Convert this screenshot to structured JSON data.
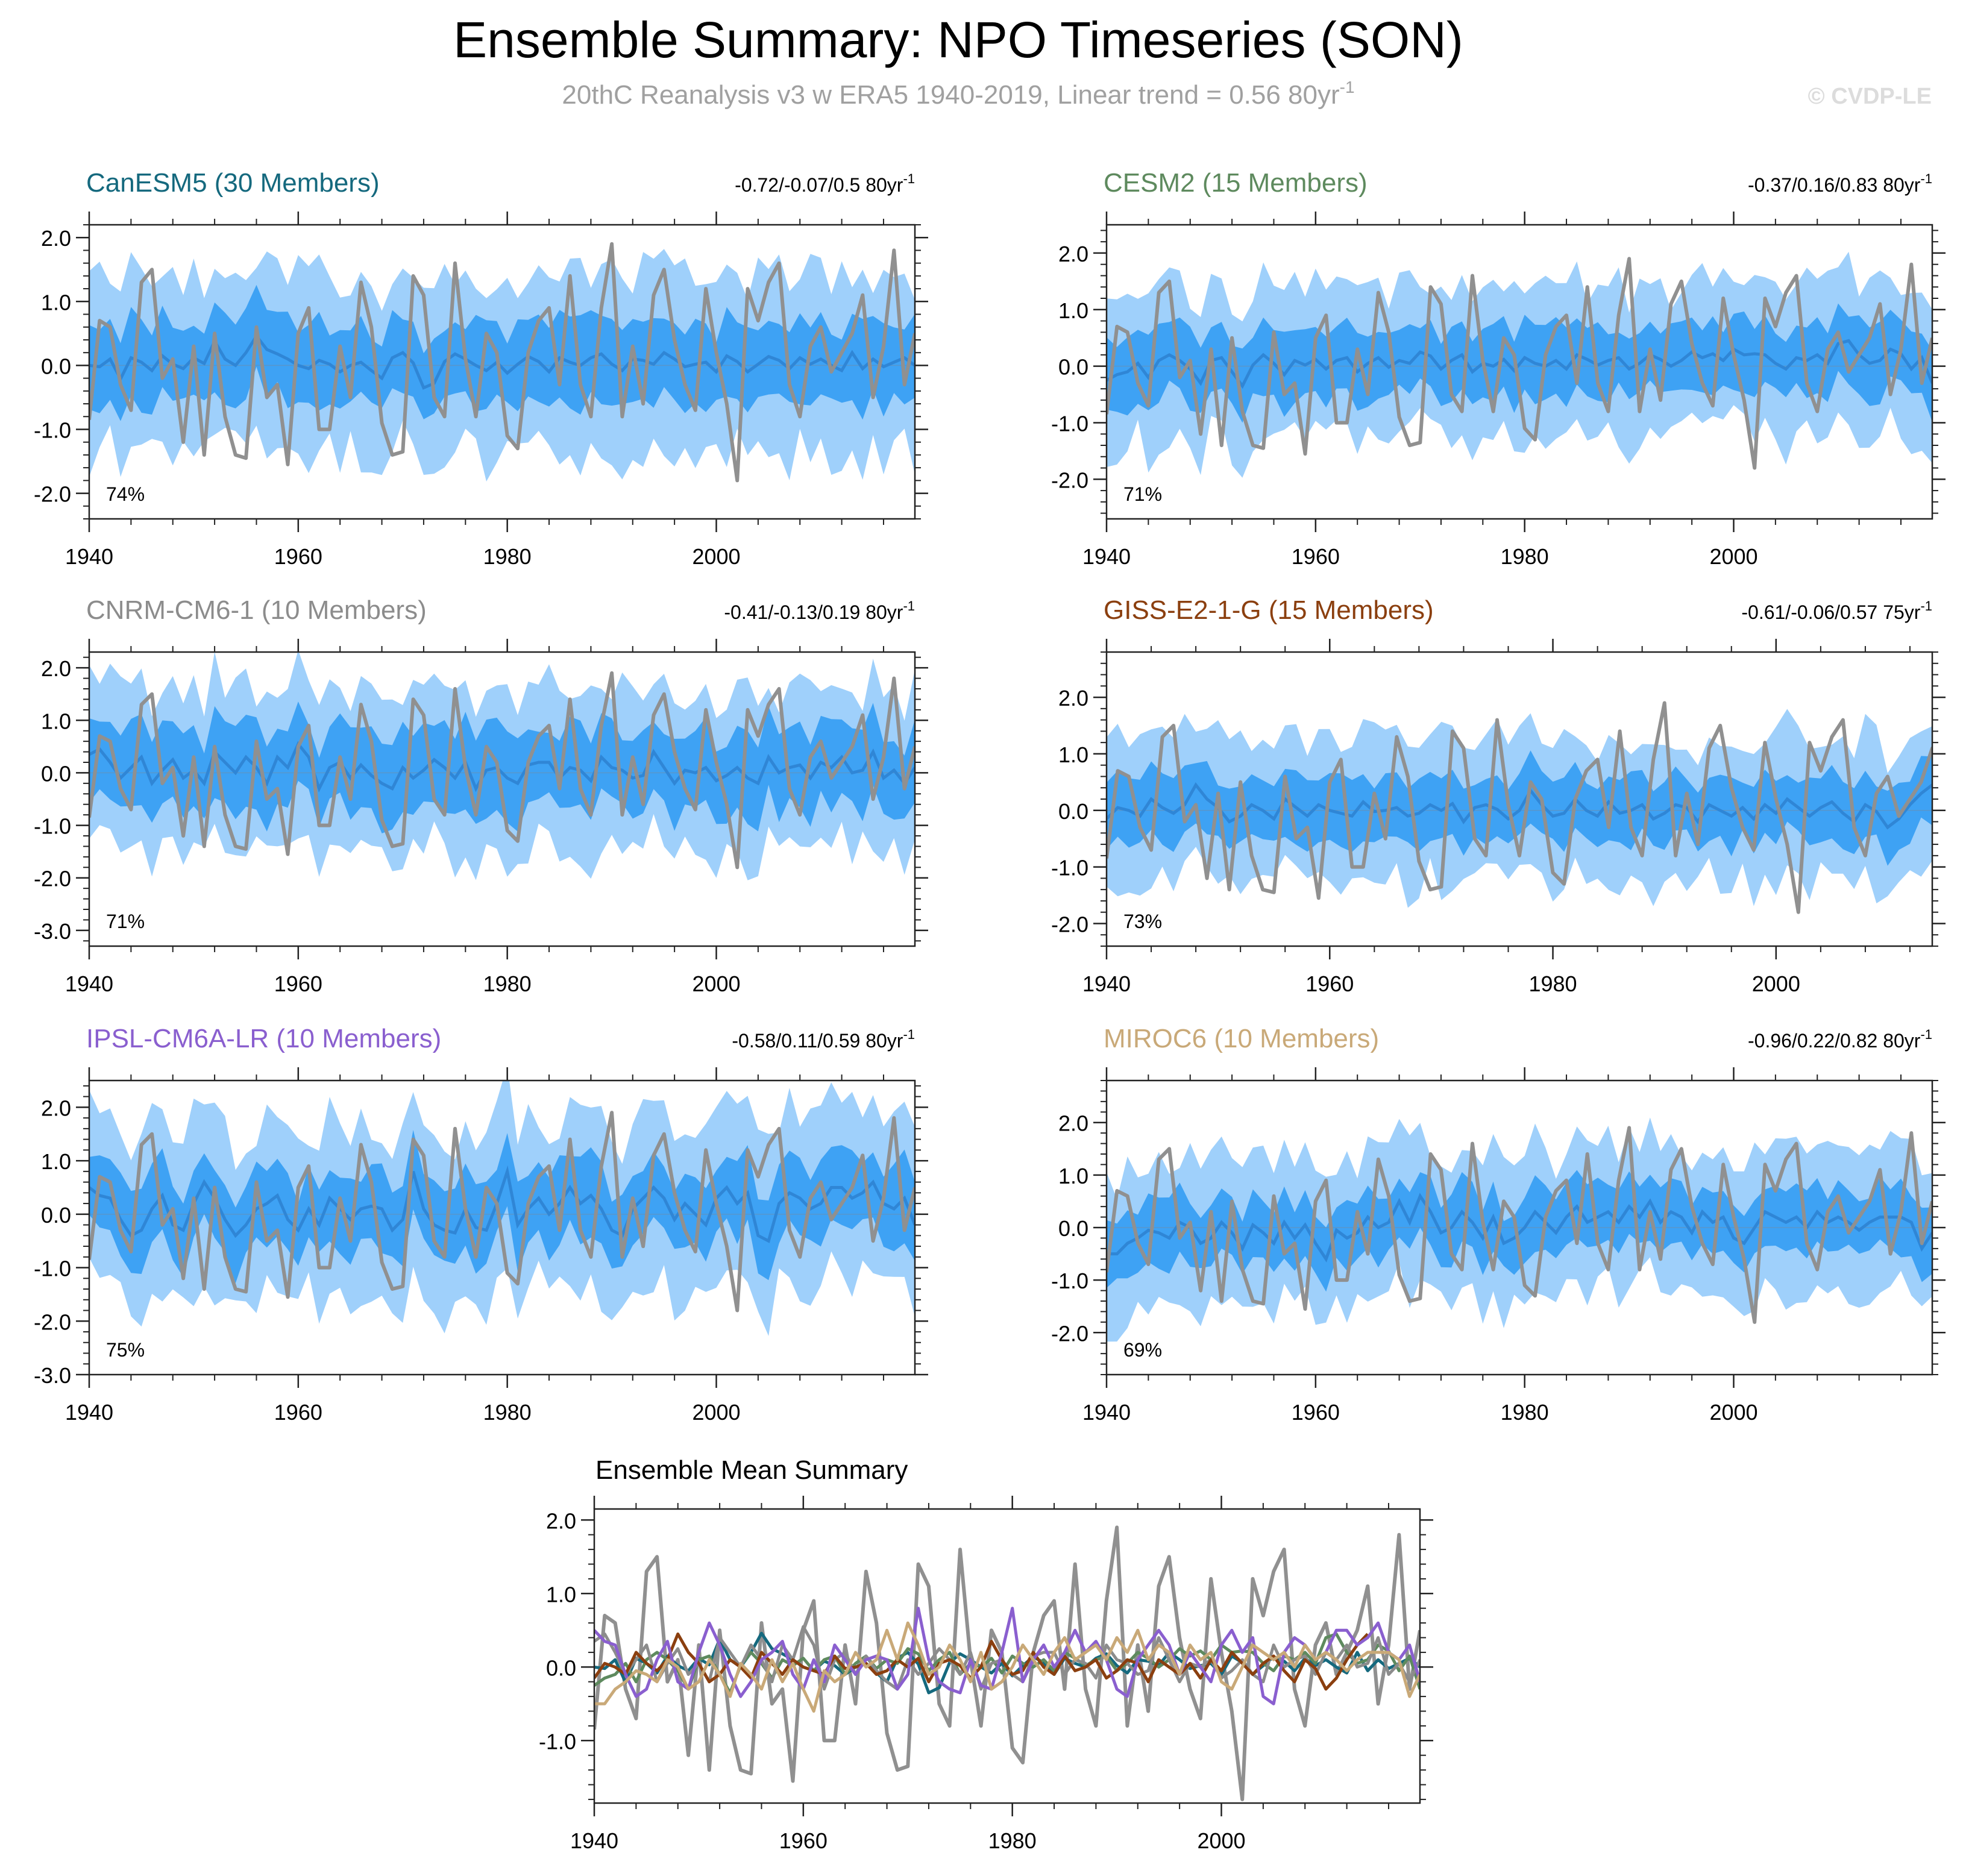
{
  "title": "Ensemble Summary: NPO Timeseries (SON)",
  "subtitle_main": "20thC Reanalysis v3 w ERA5 1940-2019, Linear trend = 0.56 80yr",
  "subtitle_sup": "-1",
  "watermark": "© CVDP-LE",
  "colors": {
    "band_outer": "#9fd0fb",
    "band_inner": "#3ea2f4",
    "ens_mean": "#2f86d6",
    "obs": "#909090",
    "axis": "#000000",
    "subtitle": "#a0a0a0",
    "watermark": "#dcdcdc",
    "CanESM5": "#15697e",
    "CESM2": "#5e8a5e",
    "CNRM-CM6-1": "#8c8c8c",
    "GISS-E2-1-G": "#8b3f0f",
    "IPSL-CM6A-LR": "#8a5fcf",
    "MIROC6": "#c9a978"
  },
  "chart_data": [
    {
      "type": "line",
      "name": "CanESM5",
      "title": "CanESM5 (30 Members)",
      "trend_label": "-0.72/-0.07/0.5 80yr",
      "trend_sup": "-1",
      "pct_label": "74%",
      "xlim": [
        1940,
        2019
      ],
      "ylim": [
        -2.4,
        2.2
      ],
      "yticks": [
        2.0,
        1.0,
        0.0,
        -1.0,
        -2.0
      ],
      "ytick_labels": [
        "2.0",
        "1.0",
        "0.0",
        "-1.0",
        "-2.0"
      ],
      "xticks": [
        1940,
        1960,
        1980,
        2000
      ],
      "xtick_labels": [
        "1940",
        "1960",
        "1980",
        "2000"
      ],
      "outer_amp": 1.35,
      "inner_amp": 0.62,
      "mean_series": [
        0.0,
        -0.02,
        0.1,
        -0.21,
        0.12,
        0.05,
        -0.08,
        0.15,
        0.02,
        -0.05,
        0.12,
        0.03,
        0.38,
        0.1,
        0.0,
        0.2,
        0.46,
        0.25,
        0.18,
        0.1,
        0.0,
        -0.05,
        0.08,
        0.02,
        -0.1,
        0.0,
        0.05,
        -0.08,
        -0.2,
        0.12,
        0.2,
        0.04,
        -0.35,
        -0.28,
        0.06,
        0.18,
        0.1,
        0.0,
        -0.08,
        0.05,
        -0.12,
        0.02,
        0.14,
        0.06,
        -0.1,
        0.12,
        0.05,
        0.0,
        0.12,
        0.18,
        0.02,
        -0.08,
        0.1,
        0.08,
        0.02,
        0.2,
        0.1,
        -0.02,
        0.02,
        0.05,
        -0.1,
        0.15,
        0.06,
        -0.1,
        0.02,
        0.14,
        0.08,
        -0.05,
        0.12,
        0.02,
        0.1,
        0.0,
        -0.08,
        0.2,
        -0.05,
        0.1,
        -0.02,
        0.05,
        0.12,
        0.0
      ]
    },
    {
      "type": "line",
      "name": "CESM2",
      "title": "CESM2 (15 Members)",
      "trend_label": "-0.37/0.16/0.83 80yr",
      "trend_sup": "-1",
      "pct_label": "71%",
      "xlim": [
        1940,
        2019
      ],
      "ylim": [
        -2.7,
        2.5
      ],
      "yticks": [
        2.0,
        1.0,
        0.0,
        -1.0,
        -2.0
      ],
      "ytick_labels": [
        "2.0",
        "1.0",
        "0.0",
        "-1.0",
        "-2.0"
      ],
      "xticks": [
        1940,
        1960,
        1980,
        2000
      ],
      "xtick_labels": [
        "1940",
        "1960",
        "1980",
        "2000"
      ],
      "outer_amp": 1.3,
      "inner_amp": 0.6,
      "mean_series": [
        -0.25,
        -0.15,
        -0.1,
        0.05,
        -0.2,
        0.1,
        0.2,
        0.1,
        -0.05,
        -0.3,
        0.1,
        0.15,
        -0.1,
        -0.35,
        0.02,
        0.2,
        0.05,
        -0.15,
        0.1,
        0.02,
        0.12,
        -0.05,
        0.1,
        0.15,
        -0.1,
        0.05,
        0.15,
        -0.02,
        0.1,
        0.05,
        0.25,
        0.18,
        -0.05,
        0.1,
        0.2,
        -0.1,
        0.05,
        0.0,
        0.12,
        -0.08,
        0.15,
        0.05,
        0.0,
        0.1,
        -0.05,
        0.2,
        0.12,
        0.02,
        0.1,
        0.15,
        -0.05,
        0.05,
        0.2,
        0.12,
        0.0,
        0.1,
        0.25,
        0.15,
        0.22,
        0.1,
        0.3,
        0.2,
        0.22,
        0.2,
        0.05,
        -0.05,
        0.15,
        0.1,
        0.2,
        0.05,
        0.4,
        0.45,
        0.2,
        0.05,
        0.1,
        0.3,
        0.22,
        -0.05,
        0.15,
        -0.3
      ]
    },
    {
      "type": "line",
      "name": "CNRM-CM6-1",
      "title": "CNRM-CM6-1 (10 Members)",
      "trend_label": "-0.41/-0.13/0.19 80yr",
      "trend_sup": "-1",
      "pct_label": "71%",
      "xlim": [
        1940,
        2019
      ],
      "ylim": [
        -3.3,
        2.3
      ],
      "yticks": [
        2.0,
        1.0,
        0.0,
        -1.0,
        -2.0,
        -3.0
      ],
      "ytick_labels": [
        "2.0",
        "1.0",
        "0.0",
        "-1.0",
        "-2.0",
        "-3.0"
      ],
      "xticks": [
        1940,
        1960,
        1980,
        2000
      ],
      "xtick_labels": [
        "1940",
        "1960",
        "1980",
        "2000"
      ],
      "outer_amp": 1.5,
      "inner_amp": 0.75,
      "mean_series": [
        0.35,
        0.45,
        0.2,
        -0.1,
        0.1,
        0.3,
        -0.2,
        0.05,
        0.25,
        -0.1,
        0.05,
        -0.2,
        0.4,
        0.2,
        0.0,
        0.3,
        0.1,
        -0.2,
        0.3,
        0.1,
        0.55,
        0.3,
        -0.3,
        0.1,
        0.2,
        -0.1,
        0.15,
        -0.05,
        -0.2,
        -0.3,
        0.1,
        -0.1,
        0.05,
        0.25,
        0.1,
        -0.1,
        0.2,
        -0.3,
        0.05,
        0.1,
        -0.1,
        -0.2,
        0.15,
        0.2,
        0.2,
        -0.1,
        0.1,
        0.05,
        -0.15,
        0.3,
        0.1,
        0.05,
        -0.1,
        -0.05,
        0.4,
        0.1,
        -0.2,
        0.05,
        0.0,
        0.1,
        -0.15,
        -0.05,
        0.1,
        -0.1,
        -0.2,
        0.3,
        0.0,
        0.1,
        0.15,
        -0.1,
        0.2,
        0.1,
        0.3,
        0.0,
        0.05,
        0.4,
        -0.1,
        0.05,
        -0.2,
        0.1
      ]
    },
    {
      "type": "line",
      "name": "GISS-E2-1-G",
      "title": "GISS-E2-1-G (15 Members)",
      "trend_label": "-0.61/-0.06/0.57 75yr",
      "trend_sup": "-1",
      "pct_label": "73%",
      "xlim": [
        1940,
        2014
      ],
      "ylim": [
        -2.4,
        2.8
      ],
      "yticks": [
        2.0,
        1.0,
        0.0,
        -1.0,
        -2.0
      ],
      "ytick_labels": [
        "2.0",
        "1.0",
        "0.0",
        "-1.0",
        "-2.0"
      ],
      "xticks": [
        1940,
        1960,
        1980,
        2000
      ],
      "xtick_labels": [
        "1940",
        "1960",
        "1980",
        "2000"
      ],
      "outer_amp": 1.25,
      "inner_amp": 0.55,
      "mean_series": [
        -0.15,
        0.05,
        0.0,
        -0.1,
        0.2,
        0.05,
        -0.05,
        0.1,
        0.45,
        0.2,
        0.05,
        -0.2,
        -0.1,
        0.1,
        0.0,
        -0.15,
        0.2,
        0.05,
        -0.1,
        0.1,
        0.0,
        -0.05,
        -0.1,
        0.15,
        -0.02,
        0.0,
        0.05,
        -0.1,
        -0.05,
        0.1,
        0.0,
        0.12,
        -0.2,
        0.05,
        0.1,
        0.02,
        -0.15,
        0.0,
        0.35,
        0.1,
        -0.1,
        -0.05,
        0.2,
        0.0,
        -0.1,
        0.15,
        -0.05,
        0.0,
        0.1,
        -0.15,
        -0.05,
        0.1,
        0.05,
        -0.2,
        0.1,
        0.0,
        -0.1,
        0.05,
        -0.15,
        0.1,
        -0.05,
        0.2,
        0.05,
        -0.1,
        0.05,
        0.15,
        -0.05,
        -0.2,
        0.1,
        -0.02,
        -0.3,
        -0.15,
        0.1,
        0.3,
        0.45
      ]
    },
    {
      "type": "line",
      "name": "IPSL-CM6A-LR",
      "title": "IPSL-CM6A-LR (10 Members)",
      "trend_label": "-0.58/0.11/0.59 80yr",
      "trend_sup": "-1",
      "pct_label": "75%",
      "xlim": [
        1940,
        2019
      ],
      "ylim": [
        -3.0,
        2.5
      ],
      "yticks": [
        2.0,
        1.0,
        0.0,
        -1.0,
        -2.0,
        -3.0
      ],
      "ytick_labels": [
        "2.0",
        "1.0",
        "0.0",
        "-1.0",
        "-2.0",
        "-3.0"
      ],
      "xticks": [
        1940,
        1960,
        1980,
        2000
      ],
      "xtick_labels": [
        "1940",
        "1960",
        "1980",
        "2000"
      ],
      "outer_amp": 1.55,
      "inner_amp": 0.7,
      "mean_series": [
        0.5,
        0.35,
        0.3,
        -0.1,
        -0.4,
        -0.3,
        0.1,
        0.35,
        -0.2,
        -0.3,
        0.2,
        0.6,
        0.3,
        -0.1,
        -0.4,
        -0.2,
        0.1,
        0.2,
        0.35,
        -0.1,
        -0.3,
        0.1,
        -0.2,
        0.3,
        0.1,
        -0.1,
        0.1,
        0.15,
        0.1,
        -0.3,
        -0.1,
        0.8,
        0.1,
        -0.2,
        -0.3,
        -0.35,
        0.1,
        -0.25,
        -0.3,
        0.2,
        0.8,
        -0.2,
        0.1,
        0.3,
        0.0,
        0.2,
        0.5,
        0.2,
        0.35,
        0.1,
        -0.3,
        -0.4,
        0.1,
        0.3,
        0.5,
        0.3,
        -0.1,
        0.2,
        0.0,
        -0.2,
        0.3,
        0.5,
        0.2,
        0.4,
        -0.4,
        -0.5,
        0.2,
        0.4,
        0.3,
        0.1,
        0.2,
        0.5,
        0.5,
        0.3,
        0.4,
        0.6,
        0.2,
        0.1,
        0.3,
        -0.2
      ]
    },
    {
      "type": "line",
      "name": "MIROC6",
      "title": "MIROC6 (10 Members)",
      "trend_label": "-0.96/0.22/0.82 80yr",
      "trend_sup": "-1",
      "pct_label": "69%",
      "xlim": [
        1940,
        2019
      ],
      "ylim": [
        -2.8,
        2.8
      ],
      "yticks": [
        2.0,
        1.0,
        0.0,
        -1.0,
        -2.0
      ],
      "ytick_labels": [
        "2.0",
        "1.0",
        "0.0",
        "-1.0",
        "-2.0"
      ],
      "xticks": [
        1940,
        1960,
        1980,
        2000
      ],
      "xtick_labels": [
        "1940",
        "1960",
        "1980",
        "2000"
      ],
      "outer_amp": 1.3,
      "inner_amp": 0.6,
      "mean_series": [
        -0.5,
        -0.5,
        -0.3,
        -0.2,
        -0.05,
        -0.1,
        -0.2,
        0.1,
        0.0,
        -0.3,
        -0.2,
        0.1,
        -0.1,
        -0.4,
        0.05,
        -0.1,
        -0.3,
        0.1,
        -0.2,
        0.05,
        -0.3,
        -0.6,
        -0.05,
        -0.2,
        -0.1,
        0.2,
        0.0,
        0.1,
        0.5,
        0.1,
        0.6,
        0.3,
        -0.1,
        0.0,
        0.3,
        0.1,
        -0.2,
        0.2,
        -0.3,
        -0.2,
        0.0,
        0.3,
        0.1,
        -0.1,
        0.2,
        0.4,
        0.1,
        0.2,
        0.3,
        0.1,
        0.4,
        0.2,
        0.5,
        0.1,
        0.3,
        0.2,
        -0.1,
        0.3,
        0.1,
        0.2,
        -0.2,
        -0.3,
        0.0,
        0.3,
        0.2,
        0.1,
        0.2,
        0.0,
        0.3,
        0.1,
        0.2,
        0.1,
        -0.05,
        0.1,
        0.2,
        0.2,
        0.2,
        0.1,
        -0.4,
        -0.1
      ]
    },
    {
      "type": "line",
      "name": "Ensemble Mean Summary",
      "title": "Ensemble Mean Summary",
      "xlim": [
        1940,
        2019
      ],
      "ylim": [
        -1.85,
        2.15
      ],
      "yticks": [
        2.0,
        1.0,
        0.0,
        -1.0
      ],
      "ytick_labels": [
        "2.0",
        "1.0",
        "0.0",
        "-1.0"
      ],
      "xticks": [
        1940,
        1960,
        1980,
        2000
      ],
      "xtick_labels": [
        "1940",
        "1960",
        "1980",
        "2000"
      ],
      "series_names": [
        "CanESM5",
        "CESM2",
        "CNRM-CM6-1",
        "GISS-E2-1-G",
        "IPSL-CM6A-LR",
        "MIROC6"
      ]
    }
  ],
  "observations": {
    "name": "20thC Reanalysis v3 w ERA5",
    "years": [
      1940,
      2019
    ],
    "values": [
      -0.85,
      0.7,
      0.6,
      -0.3,
      -0.7,
      1.3,
      1.5,
      -0.2,
      0.1,
      -1.2,
      0.3,
      -1.4,
      0.5,
      -0.8,
      -1.4,
      -1.45,
      0.6,
      -0.5,
      -0.3,
      -1.55,
      0.5,
      0.9,
      -1.0,
      -1.0,
      0.3,
      -0.5,
      1.3,
      0.6,
      -0.9,
      -1.4,
      -1.35,
      1.4,
      1.1,
      -0.5,
      -0.8,
      1.6,
      0.1,
      -0.8,
      0.5,
      0.2,
      -1.1,
      -1.3,
      0.2,
      0.7,
      0.9,
      -0.3,
      1.4,
      -0.3,
      -0.8,
      0.9,
      1.9,
      -0.8,
      0.3,
      -0.6,
      1.1,
      1.5,
      0.4,
      -0.3,
      -0.7,
      1.2,
      0.2,
      -0.6,
      -1.8,
      1.2,
      0.7,
      1.3,
      1.6,
      -0.3,
      -0.8,
      0.3,
      0.6,
      -0.1,
      0.2,
      0.5,
      1.1,
      -0.5,
      0.3,
      1.8,
      -0.3,
      0.5
    ]
  }
}
